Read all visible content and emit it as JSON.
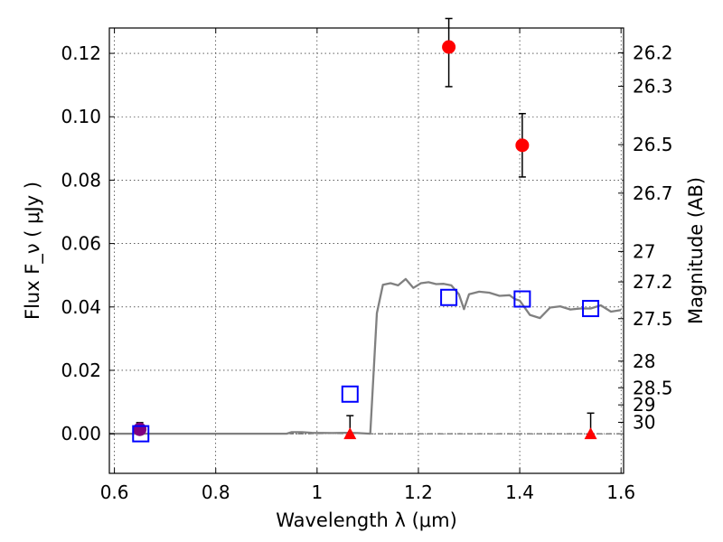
{
  "chart_data": {
    "type": "scatter",
    "xlabel": "Wavelength  λ (μm)",
    "ylabel": "Flux  F_ν  ( μJy )",
    "y2label": "Magnitude (AB)",
    "xlim": [
      0.59,
      1.605
    ],
    "ylim": [
      -0.0125,
      0.128
    ],
    "grid": true,
    "x_ticks": [
      {
        "value": 0.6,
        "label": "0.6"
      },
      {
        "value": 0.8,
        "label": "0.8"
      },
      {
        "value": 1.0,
        "label": "1"
      },
      {
        "value": 1.2,
        "label": "1.2"
      },
      {
        "value": 1.4,
        "label": "1.4"
      },
      {
        "value": 1.6,
        "label": "1.6"
      }
    ],
    "y_ticks": [
      {
        "value": 0.0,
        "label": "0.00"
      },
      {
        "value": 0.02,
        "label": "0.02"
      },
      {
        "value": 0.04,
        "label": "0.04"
      },
      {
        "value": 0.06,
        "label": "0.06"
      },
      {
        "value": 0.08,
        "label": "0.08"
      },
      {
        "value": 0.1,
        "label": "0.10"
      },
      {
        "value": 0.12,
        "label": "0.12"
      }
    ],
    "mag_ticks": [
      {
        "mag": 26.2,
        "flux": 0.1202,
        "label": "26.2"
      },
      {
        "mag": 26.3,
        "flux": 0.1096,
        "label": "26.3"
      },
      {
        "mag": 26.5,
        "flux": 0.0912,
        "label": "26.5"
      },
      {
        "mag": 26.7,
        "flux": 0.0759,
        "label": "26.7"
      },
      {
        "mag": 27.0,
        "flux": 0.0575,
        "label": "27"
      },
      {
        "mag": 27.2,
        "flux": 0.0479,
        "label": "27.2"
      },
      {
        "mag": 27.5,
        "flux": 0.0363,
        "label": "27.5"
      },
      {
        "mag": 28.0,
        "flux": 0.0229,
        "label": "28"
      },
      {
        "mag": 28.5,
        "flux": 0.0145,
        "label": "28.5"
      },
      {
        "mag": 29.0,
        "flux": 0.0091,
        "label": "29"
      },
      {
        "mag": 30.0,
        "flux": 0.0036,
        "label": "30"
      }
    ],
    "model_spectrum": {
      "color": "#808080",
      "x": [
        0.59,
        0.94,
        0.95,
        0.97,
        0.99,
        1.03,
        1.06,
        1.08,
        1.105,
        1.118,
        1.13,
        1.145,
        1.16,
        1.175,
        1.19,
        1.205,
        1.22,
        1.235,
        1.25,
        1.265,
        1.28,
        1.29,
        1.3,
        1.32,
        1.34,
        1.36,
        1.38,
        1.39,
        1.4,
        1.42,
        1.44,
        1.46,
        1.48,
        1.5,
        1.52,
        1.54,
        1.56,
        1.58,
        1.6
      ],
      "y": [
        0.0,
        0.0,
        0.0005,
        0.0005,
        0.0003,
        0.0002,
        0.0003,
        0.0002,
        0.0,
        0.038,
        0.047,
        0.0475,
        0.0468,
        0.0488,
        0.046,
        0.0475,
        0.0478,
        0.0472,
        0.0473,
        0.0468,
        0.044,
        0.0393,
        0.044,
        0.0448,
        0.0445,
        0.0435,
        0.0437,
        0.0425,
        0.042,
        0.0375,
        0.0365,
        0.0398,
        0.0402,
        0.0392,
        0.0395,
        0.0395,
        0.0405,
        0.0385,
        0.039
      ]
    },
    "series": [
      {
        "name": "",
        "marker": "circle",
        "color": "#ff0000",
        "points": [
          {
            "x": 1.26,
            "y": 0.122,
            "err_low": 0.0125,
            "err_high": 0.009
          },
          {
            "x": 1.405,
            "y": 0.091,
            "err_low": 0.01,
            "err_high": 0.01
          }
        ]
      },
      {
        "name": "",
        "marker": "circle",
        "color": "#800080",
        "points": [
          {
            "x": 0.65,
            "y": 0.0014,
            "err_low": 0.0014,
            "err_high": 0.0021
          }
        ]
      },
      {
        "name": "",
        "marker": "triangle",
        "color": "#ff0000",
        "points": [
          {
            "x": 1.065,
            "y": 0.0,
            "err_low": 0.0,
            "err_high": 0.0057
          },
          {
            "x": 1.54,
            "y": 0.0,
            "err_low": 0.0,
            "err_high": 0.0065
          }
        ]
      },
      {
        "name": "",
        "marker": "open-square",
        "color": "#0000ff",
        "points": [
          {
            "x": 0.652,
            "y": 0.0,
            "err_low": 0,
            "err_high": 0
          },
          {
            "x": 1.065,
            "y": 0.0125,
            "err_low": 0,
            "err_high": 0
          },
          {
            "x": 1.26,
            "y": 0.043,
            "err_low": 0,
            "err_high": 0
          },
          {
            "x": 1.405,
            "y": 0.0425,
            "err_low": 0,
            "err_high": 0
          },
          {
            "x": 1.54,
            "y": 0.0395,
            "err_low": 0,
            "err_high": 0
          }
        ]
      }
    ]
  }
}
